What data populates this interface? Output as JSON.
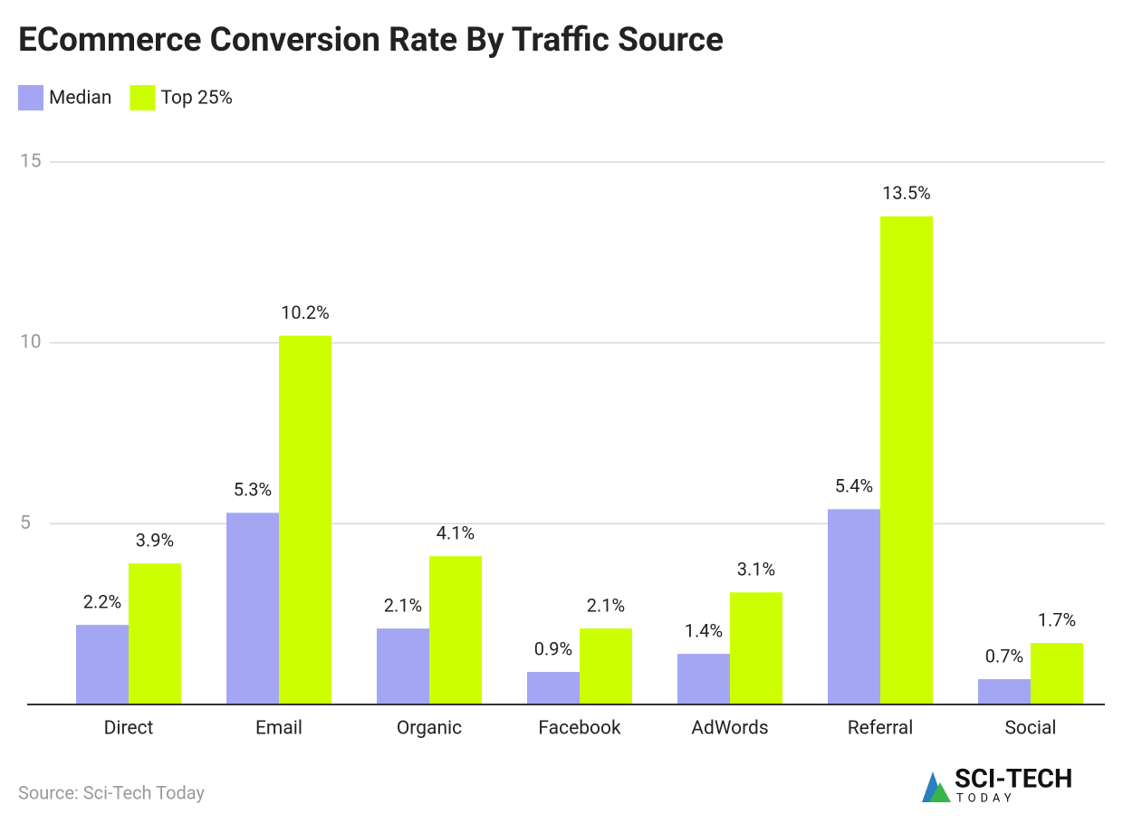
{
  "chart_data": {
    "type": "bar",
    "title": "ECommerce Conversion Rate By Traffic Source",
    "categories": [
      "Direct",
      "Email",
      "Organic",
      "Facebook",
      "AdWords",
      "Referral",
      "Social"
    ],
    "series": [
      {
        "name": "Median",
        "color": "#a4a6f4",
        "values": [
          2.2,
          5.3,
          2.1,
          0.9,
          1.4,
          5.4,
          0.7
        ],
        "value_labels": [
          "2.2%",
          "5.3%",
          "2.1%",
          "0.9%",
          "1.4%",
          "5.4%",
          "0.7%"
        ]
      },
      {
        "name": "Top 25%",
        "color": "#ccff00",
        "values": [
          3.9,
          10.2,
          4.1,
          2.1,
          3.1,
          13.5,
          1.7
        ],
        "value_labels": [
          "3.9%",
          "10.2%",
          "4.1%",
          "2.1%",
          "3.1%",
          "13.5%",
          "1.7%"
        ]
      }
    ],
    "ylim": [
      0,
      15
    ],
    "yticks": [
      5,
      10,
      15
    ],
    "grid": true,
    "source": "Source: Sci-Tech Today",
    "logo": {
      "name": "SCI-TECH",
      "tagline": "TODAY"
    }
  }
}
